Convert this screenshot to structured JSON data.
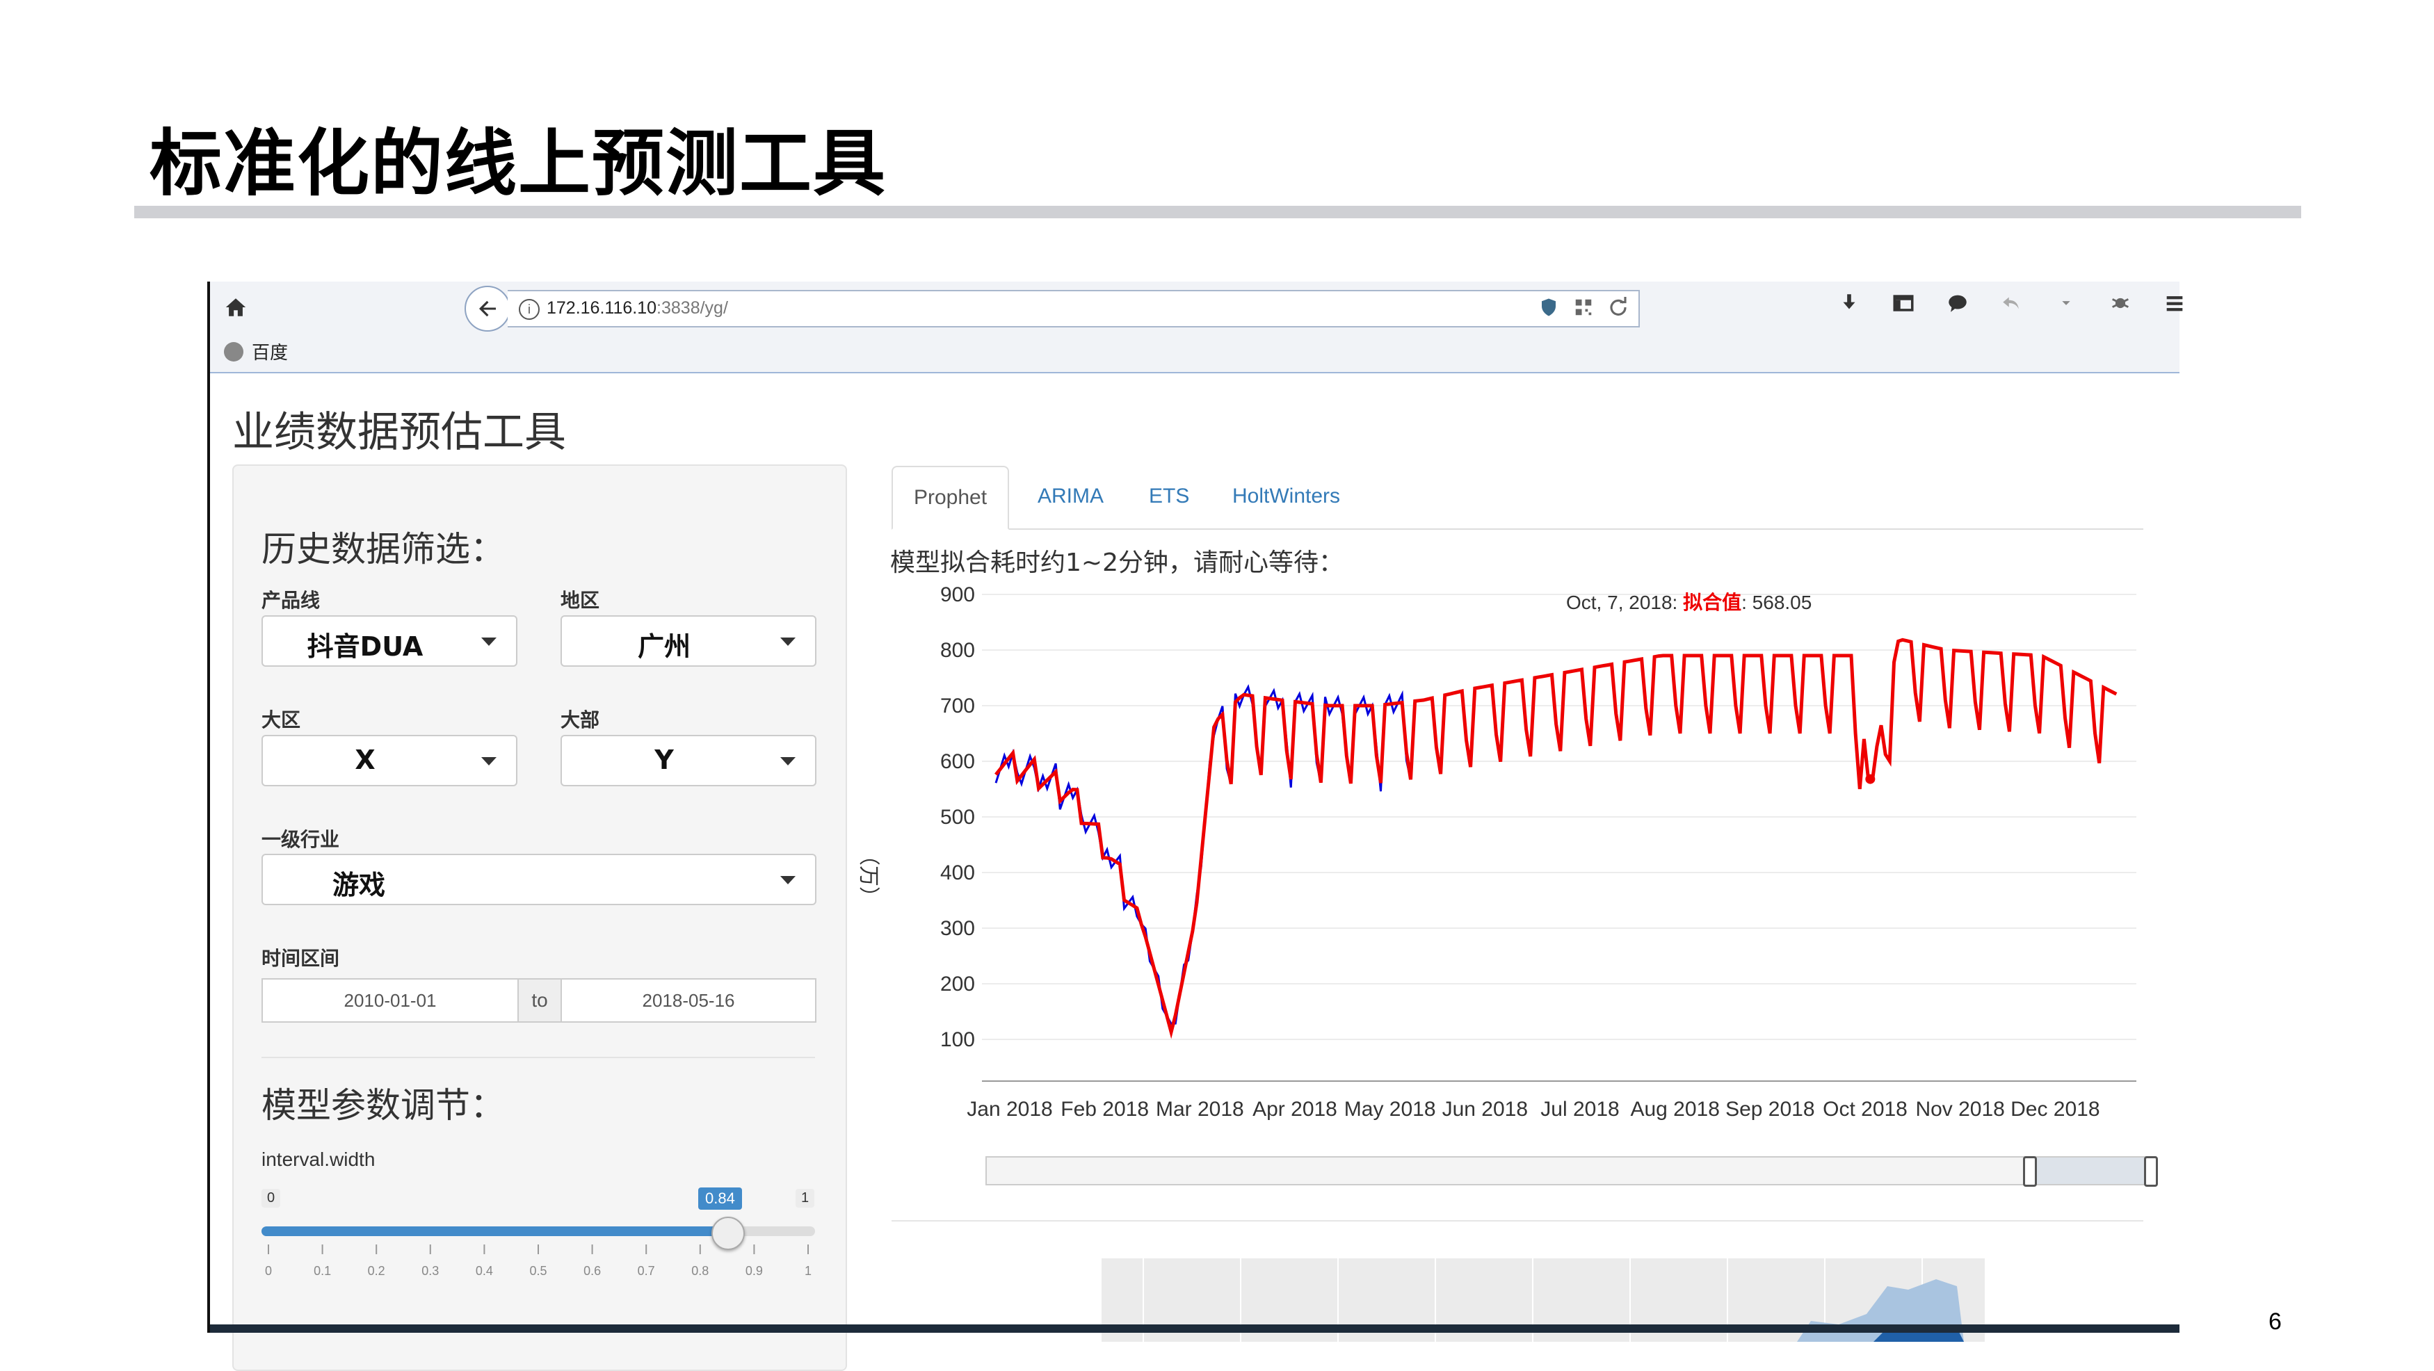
{
  "slide": {
    "title": "标准化的线上预测工具",
    "page_number": "6"
  },
  "browser": {
    "url_host": "172.16.116.10",
    "url_rest": ":3838/yg/",
    "bookmark": "百度"
  },
  "app": {
    "title": "业绩数据预估工具",
    "history_section": "历史数据筛选：",
    "product_line_label": "产品线",
    "product_line_value": "抖音DUA",
    "region_label": "地区",
    "region_value": "广州",
    "big_area_label": "大区",
    "big_area_value": "X",
    "big_dept_label": "大部",
    "big_dept_value": "Y",
    "industry_label": "一级行业",
    "industry_value": "游戏",
    "time_label": "时间区间",
    "date_from": "2010-01-01",
    "date_to_sep": "to",
    "date_to": "2018-05-16",
    "param_section": "模型参数调节：",
    "interval_label": "interval.width",
    "slider_min": "0",
    "slider_max": "1",
    "slider_value": "0.84",
    "slider_ticks": [
      "0",
      "0.1",
      "0.2",
      "0.3",
      "0.4",
      "0.5",
      "0.6",
      "0.7",
      "0.8",
      "0.9",
      "1"
    ]
  },
  "tabs": [
    "Prophet",
    "ARIMA",
    "ETS",
    "HoltWinters"
  ],
  "wait_text": "模型拟合耗时约1~2分钟，请耐心等待：",
  "tooltip": {
    "date": "Oct, 7, 2018:",
    "key": "拟合值",
    "value": ": 568.05"
  },
  "chart_data": {
    "type": "line",
    "ylabel": "（万）",
    "y_ticks": [
      900,
      800,
      700,
      600,
      500,
      400,
      300,
      200,
      100
    ],
    "ylim": [
      50,
      900
    ],
    "x_ticks": [
      "Jan 2018",
      "Feb 2018",
      "Mar 2018",
      "Apr 2018",
      "May 2018",
      "Jun 2018",
      "Jul 2018",
      "Aug 2018",
      "Sep 2018",
      "Oct 2018",
      "Nov 2018",
      "Dec 2018"
    ],
    "series": [
      {
        "color": "#0000dd",
        "note": "actual (Jan–May 2018)"
      },
      {
        "color": "#ee0000",
        "note": "fitted / forecast"
      }
    ],
    "anchor_values": {
      "x_month": [
        0.0,
        0.4,
        0.8,
        1.2,
        1.55,
        1.85,
        2.1,
        2.3,
        2.6,
        3.0,
        3.5,
        4.0,
        4.5,
        5.0,
        6.0,
        7.0,
        8.0,
        9.0,
        9.2,
        9.5,
        10.0,
        11.0,
        11.8
      ],
      "y_value": [
        600,
        580,
        540,
        430,
        300,
        110,
        320,
        670,
        720,
        710,
        700,
        700,
        710,
        730,
        760,
        790,
        790,
        790,
        568,
        820,
        800,
        790,
        720
      ]
    },
    "grid": true
  }
}
